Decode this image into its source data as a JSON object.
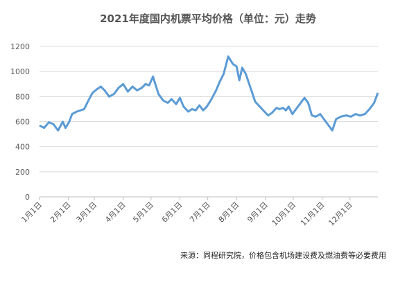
{
  "chart_data": {
    "type": "line",
    "title": "2021年度国内机票平均价格（单位：元）走势",
    "source": "来源：同程研究院，价格包含机场建设费及燃油费等必要费用",
    "x": [
      0,
      5,
      10,
      15,
      20,
      25,
      28,
      32,
      35,
      40,
      48,
      52,
      57,
      62,
      66,
      70,
      75,
      80,
      85,
      90,
      95,
      100,
      105,
      110,
      114,
      118,
      122,
      128,
      133,
      138,
      142,
      147,
      151,
      155,
      160,
      164,
      168,
      172,
      176,
      180,
      185,
      190,
      194,
      198,
      203,
      208,
      212,
      215,
      218,
      222,
      227,
      232,
      237,
      242,
      246,
      250,
      255,
      258,
      262,
      265,
      268,
      272,
      276,
      280,
      285,
      289,
      293,
      297,
      302,
      306,
      310,
      315,
      319,
      324,
      330,
      335,
      340,
      345,
      350,
      355,
      360,
      364
    ],
    "values": [
      570,
      550,
      595,
      580,
      530,
      600,
      550,
      600,
      660,
      680,
      700,
      760,
      830,
      860,
      880,
      850,
      800,
      820,
      870,
      900,
      840,
      880,
      850,
      870,
      900,
      890,
      960,
      820,
      770,
      750,
      780,
      740,
      790,
      720,
      680,
      700,
      690,
      730,
      690,
      720,
      780,
      850,
      920,
      980,
      1120,
      1060,
      1040,
      930,
      1030,
      980,
      870,
      760,
      720,
      680,
      650,
      670,
      710,
      700,
      710,
      690,
      720,
      660,
      700,
      740,
      790,
      750,
      650,
      640,
      660,
      620,
      580,
      530,
      620,
      640,
      650,
      640,
      660,
      650,
      660,
      700,
      750,
      830
    ],
    "color": "#5b9bd5",
    "xlim": [
      0,
      364
    ],
    "xticks": [
      {
        "value": 0,
        "label": "1月1日"
      },
      {
        "value": 31,
        "label": "2月1日"
      },
      {
        "value": 59,
        "label": "3月1日"
      },
      {
        "value": 90,
        "label": "4月1日"
      },
      {
        "value": 120,
        "label": "5月1日"
      },
      {
        "value": 151,
        "label": "6月1日"
      },
      {
        "value": 181,
        "label": "7月1日"
      },
      {
        "value": 212,
        "label": "8月1日"
      },
      {
        "value": 243,
        "label": "9月1日"
      },
      {
        "value": 273,
        "label": "10月1日"
      },
      {
        "value": 304,
        "label": "11月1日"
      },
      {
        "value": 334,
        "label": "12月1日"
      }
    ],
    "ylim": [
      0,
      1200
    ],
    "yticks": [
      0,
      200,
      400,
      600,
      800,
      1000,
      1200
    ],
    "grid": true
  }
}
